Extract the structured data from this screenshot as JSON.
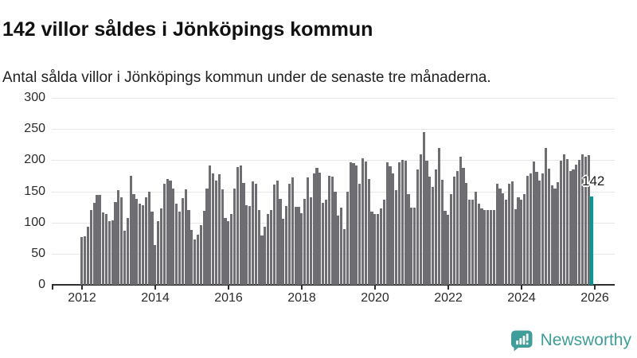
{
  "header": {
    "title": "142 villor såldes i Jönköpings kommun",
    "subtitle": "Antal sålda villor i Jönköpings kommun under de senaste tre månaderna."
  },
  "chart_data": {
    "type": "bar",
    "title": "142 villor såldes i Jönköpings kommun",
    "subtitle": "Antal sålda villor i Jönköpings kommun under de senaste tre månaderna.",
    "x_start": "2012-01",
    "x_freq": "monthly",
    "x_tick_labels": [
      "2012",
      "2014",
      "2016",
      "2018",
      "2020",
      "2022",
      "2024",
      "2026"
    ],
    "y_ticks": [
      0,
      50,
      100,
      150,
      200,
      250,
      300
    ],
    "ylim": [
      0,
      300
    ],
    "grid": true,
    "bar_color": "#6d6d72",
    "series": [
      {
        "name": "Antal sålda villor",
        "values": [
          77,
          78,
          93,
          120,
          132,
          144,
          144,
          116,
          113,
          102,
          103,
          133,
          152,
          140,
          87,
          107,
          175,
          145,
          138,
          130,
          128,
          141,
          149,
          117,
          64,
          102,
          123,
          162,
          170,
          167,
          154,
          130,
          117,
          139,
          153,
          120,
          88,
          73,
          81,
          96,
          119,
          155,
          192,
          179,
          167,
          178,
          153,
          107,
          102,
          114,
          154,
          189,
          191,
          163,
          128,
          126,
          166,
          162,
          120,
          79,
          93,
          113,
          120,
          161,
          167,
          138,
          106,
          126,
          162,
          172,
          125,
          125,
          115,
          138,
          172,
          140,
          179,
          188,
          180,
          132,
          136,
          175,
          174,
          150,
          111,
          124,
          89,
          150,
          196,
          195,
          192,
          162,
          203,
          198,
          170,
          117,
          113,
          114,
          122,
          137,
          196,
          190,
          179,
          152,
          196,
          201,
          199,
          145,
          124,
          124,
          185,
          210,
          245,
          199,
          174,
          157,
          185,
          219,
          169,
          119,
          112,
          146,
          174,
          182,
          206,
          188,
          163,
          136,
          137,
          149,
          130,
          123,
          120,
          120,
          120,
          120,
          162,
          155,
          147,
          137,
          162,
          166,
          121,
          140,
          137,
          145,
          175,
          179,
          198,
          181,
          167,
          179,
          220,
          187,
          160,
          154,
          165,
          199,
          209,
          202,
          183,
          185,
          193,
          201,
          209,
          206,
          208,
          142
        ]
      }
    ],
    "highlight": {
      "index": 167,
      "value": 142,
      "label": "142",
      "color": "#009a9a"
    }
  },
  "branding": {
    "logo_text": "Newsworthy",
    "logo_color": "#3f9e99"
  },
  "colors": {
    "bar_gray": "#6d6d72",
    "bar_teal": "#009a9a",
    "grid": "#e7e7e7",
    "axis": "#2e2e2e",
    "text": "#111111"
  }
}
